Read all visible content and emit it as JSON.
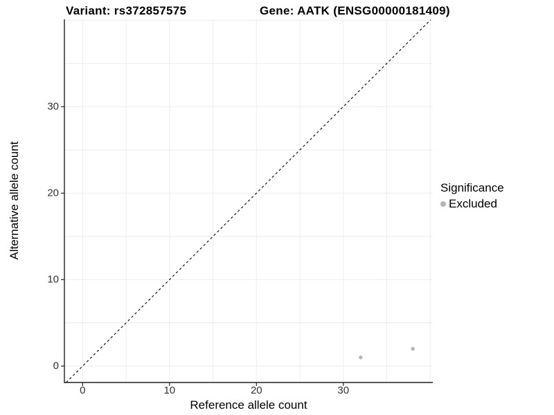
{
  "chart_data": {
    "type": "scatter",
    "titles": {
      "left": "Variant: rs372857575",
      "right": "Gene: AATK (ENSG00000181409)"
    },
    "xlabel": "Reference allele count",
    "ylabel": "Alternative allele count",
    "xlim": [
      -2.1,
      40.3
    ],
    "ylim": [
      -1.9,
      40.1
    ],
    "x_ticks": [
      0,
      10,
      20,
      30
    ],
    "y_ticks": [
      0,
      10,
      20,
      30
    ],
    "grid_step": 5,
    "grid_min": 0,
    "grid_max": 40,
    "identity_line": {
      "x1": -1.9,
      "y1": -1.9,
      "x2": 40.05,
      "y2": 40.05,
      "style": "dashed",
      "color": "#000000"
    },
    "series": [
      {
        "name": "Excluded",
        "color": "#b5b5b5",
        "points": [
          {
            "x": 32,
            "y": 1
          },
          {
            "x": 38,
            "y": 2
          }
        ]
      }
    ],
    "legend": {
      "title": "Significance",
      "position": "right",
      "entries": [
        {
          "label": "Excluded",
          "color": "#b5b5b5"
        }
      ]
    },
    "colors": {
      "grid": "#ececec",
      "axis": "#1f1f1f",
      "tick": "#1f1f1f",
      "tick_label": "#303030",
      "title": "#000000"
    },
    "grid": true
  }
}
